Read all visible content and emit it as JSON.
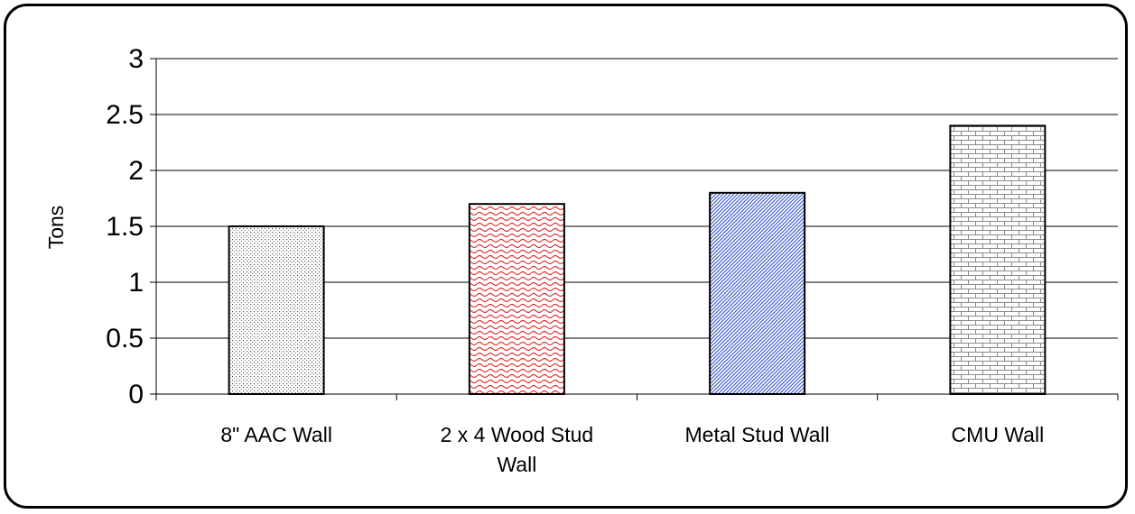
{
  "chart_data": {
    "type": "bar",
    "title": "",
    "xlabel": "",
    "ylabel": "Tons",
    "ylim": [
      0,
      3
    ],
    "yticks": [
      "0",
      "0.5",
      "1",
      "1.5",
      "2",
      "2.5",
      "3"
    ],
    "grid": true,
    "categories": [
      [
        "8\" AAC Wall"
      ],
      [
        "2 x 4 Wood Stud",
        "Wall"
      ],
      [
        "Metal Stud Wall"
      ],
      [
        "CMU Wall"
      ]
    ],
    "values": [
      1.5,
      1.7,
      1.8,
      2.4
    ],
    "bar_fills": [
      {
        "pattern": "dots",
        "color": "#555555"
      },
      {
        "pattern": "waves",
        "color": "#dd2222"
      },
      {
        "pattern": "diagonal",
        "color": "#3355cc"
      },
      {
        "pattern": "bricks",
        "color": "#888888"
      }
    ]
  }
}
